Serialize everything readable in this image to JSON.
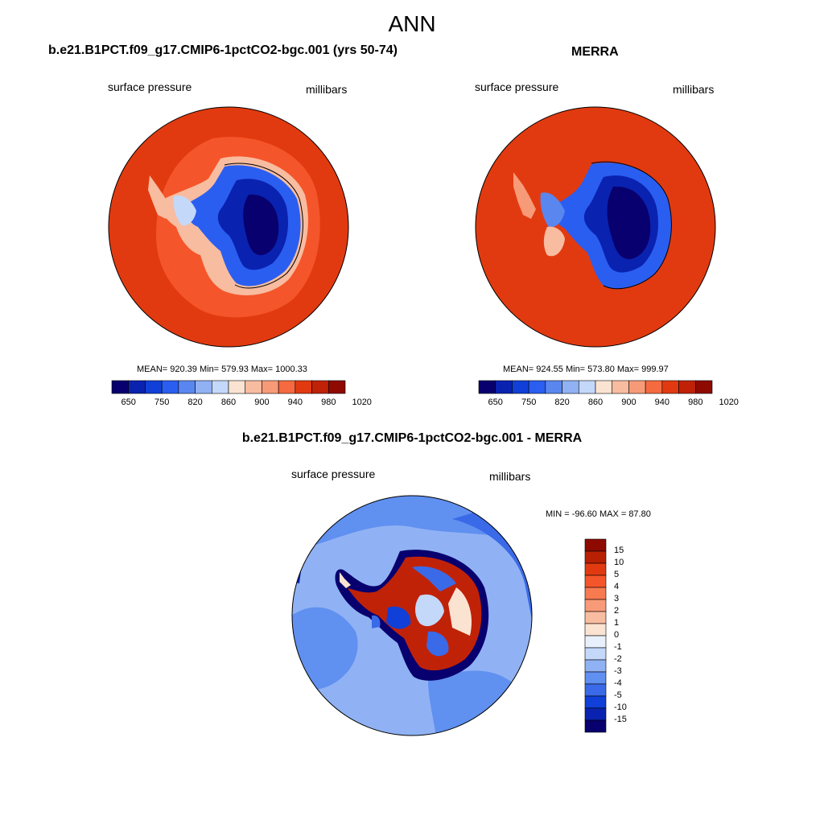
{
  "title": "ANN",
  "variable_label": "surface pressure",
  "units_label": "millibars",
  "panels": [
    {
      "title": "b.e21.B1PCT.f09_g17.CMIP6-1pctCO2-bgc.001 (yrs 50-74)",
      "stats": "MEAN= 920.39  Min= 579.93  Max= 1000.33"
    },
    {
      "title": "MERRA",
      "stats": "MEAN= 924.55  Min= 573.80  Max= 999.97"
    },
    {
      "title": "b.e21.B1PCT.f09_g17.CMIP6-1pctCO2-bgc.001 - MERRA",
      "stats": "MIN = -96.60 MAX =  87.80"
    }
  ],
  "colorbar_abs": {
    "levels": [
      "650",
      "750",
      "820",
      "860",
      "900",
      "940",
      "980",
      "1020"
    ],
    "colors": [
      "#08006e",
      "#0a22b0",
      "#1040d8",
      "#2a5ef0",
      "#5a86f0",
      "#90b2f4",
      "#c4d8fa",
      "#fbe3d2",
      "#f8bca0",
      "#f79a78",
      "#f56a40",
      "#e23a10",
      "#c02208",
      "#8e0a00"
    ]
  },
  "colorbar_diff": {
    "levels": [
      "15",
      "10",
      "5",
      "4",
      "3",
      "2",
      "1",
      "0",
      "-1",
      "-2",
      "-3",
      "-4",
      "-5",
      "-10",
      "-15"
    ],
    "colors": [
      "#8e0a00",
      "#b82004",
      "#e23a10",
      "#f5552a",
      "#f77a50",
      "#f89a78",
      "#f8bca0",
      "#fbe3d2",
      "#e8f0fc",
      "#c4d8fa",
      "#90b2f4",
      "#6090f0",
      "#3a6ae8",
      "#1040d8",
      "#0a22b0",
      "#08006e"
    ]
  }
}
